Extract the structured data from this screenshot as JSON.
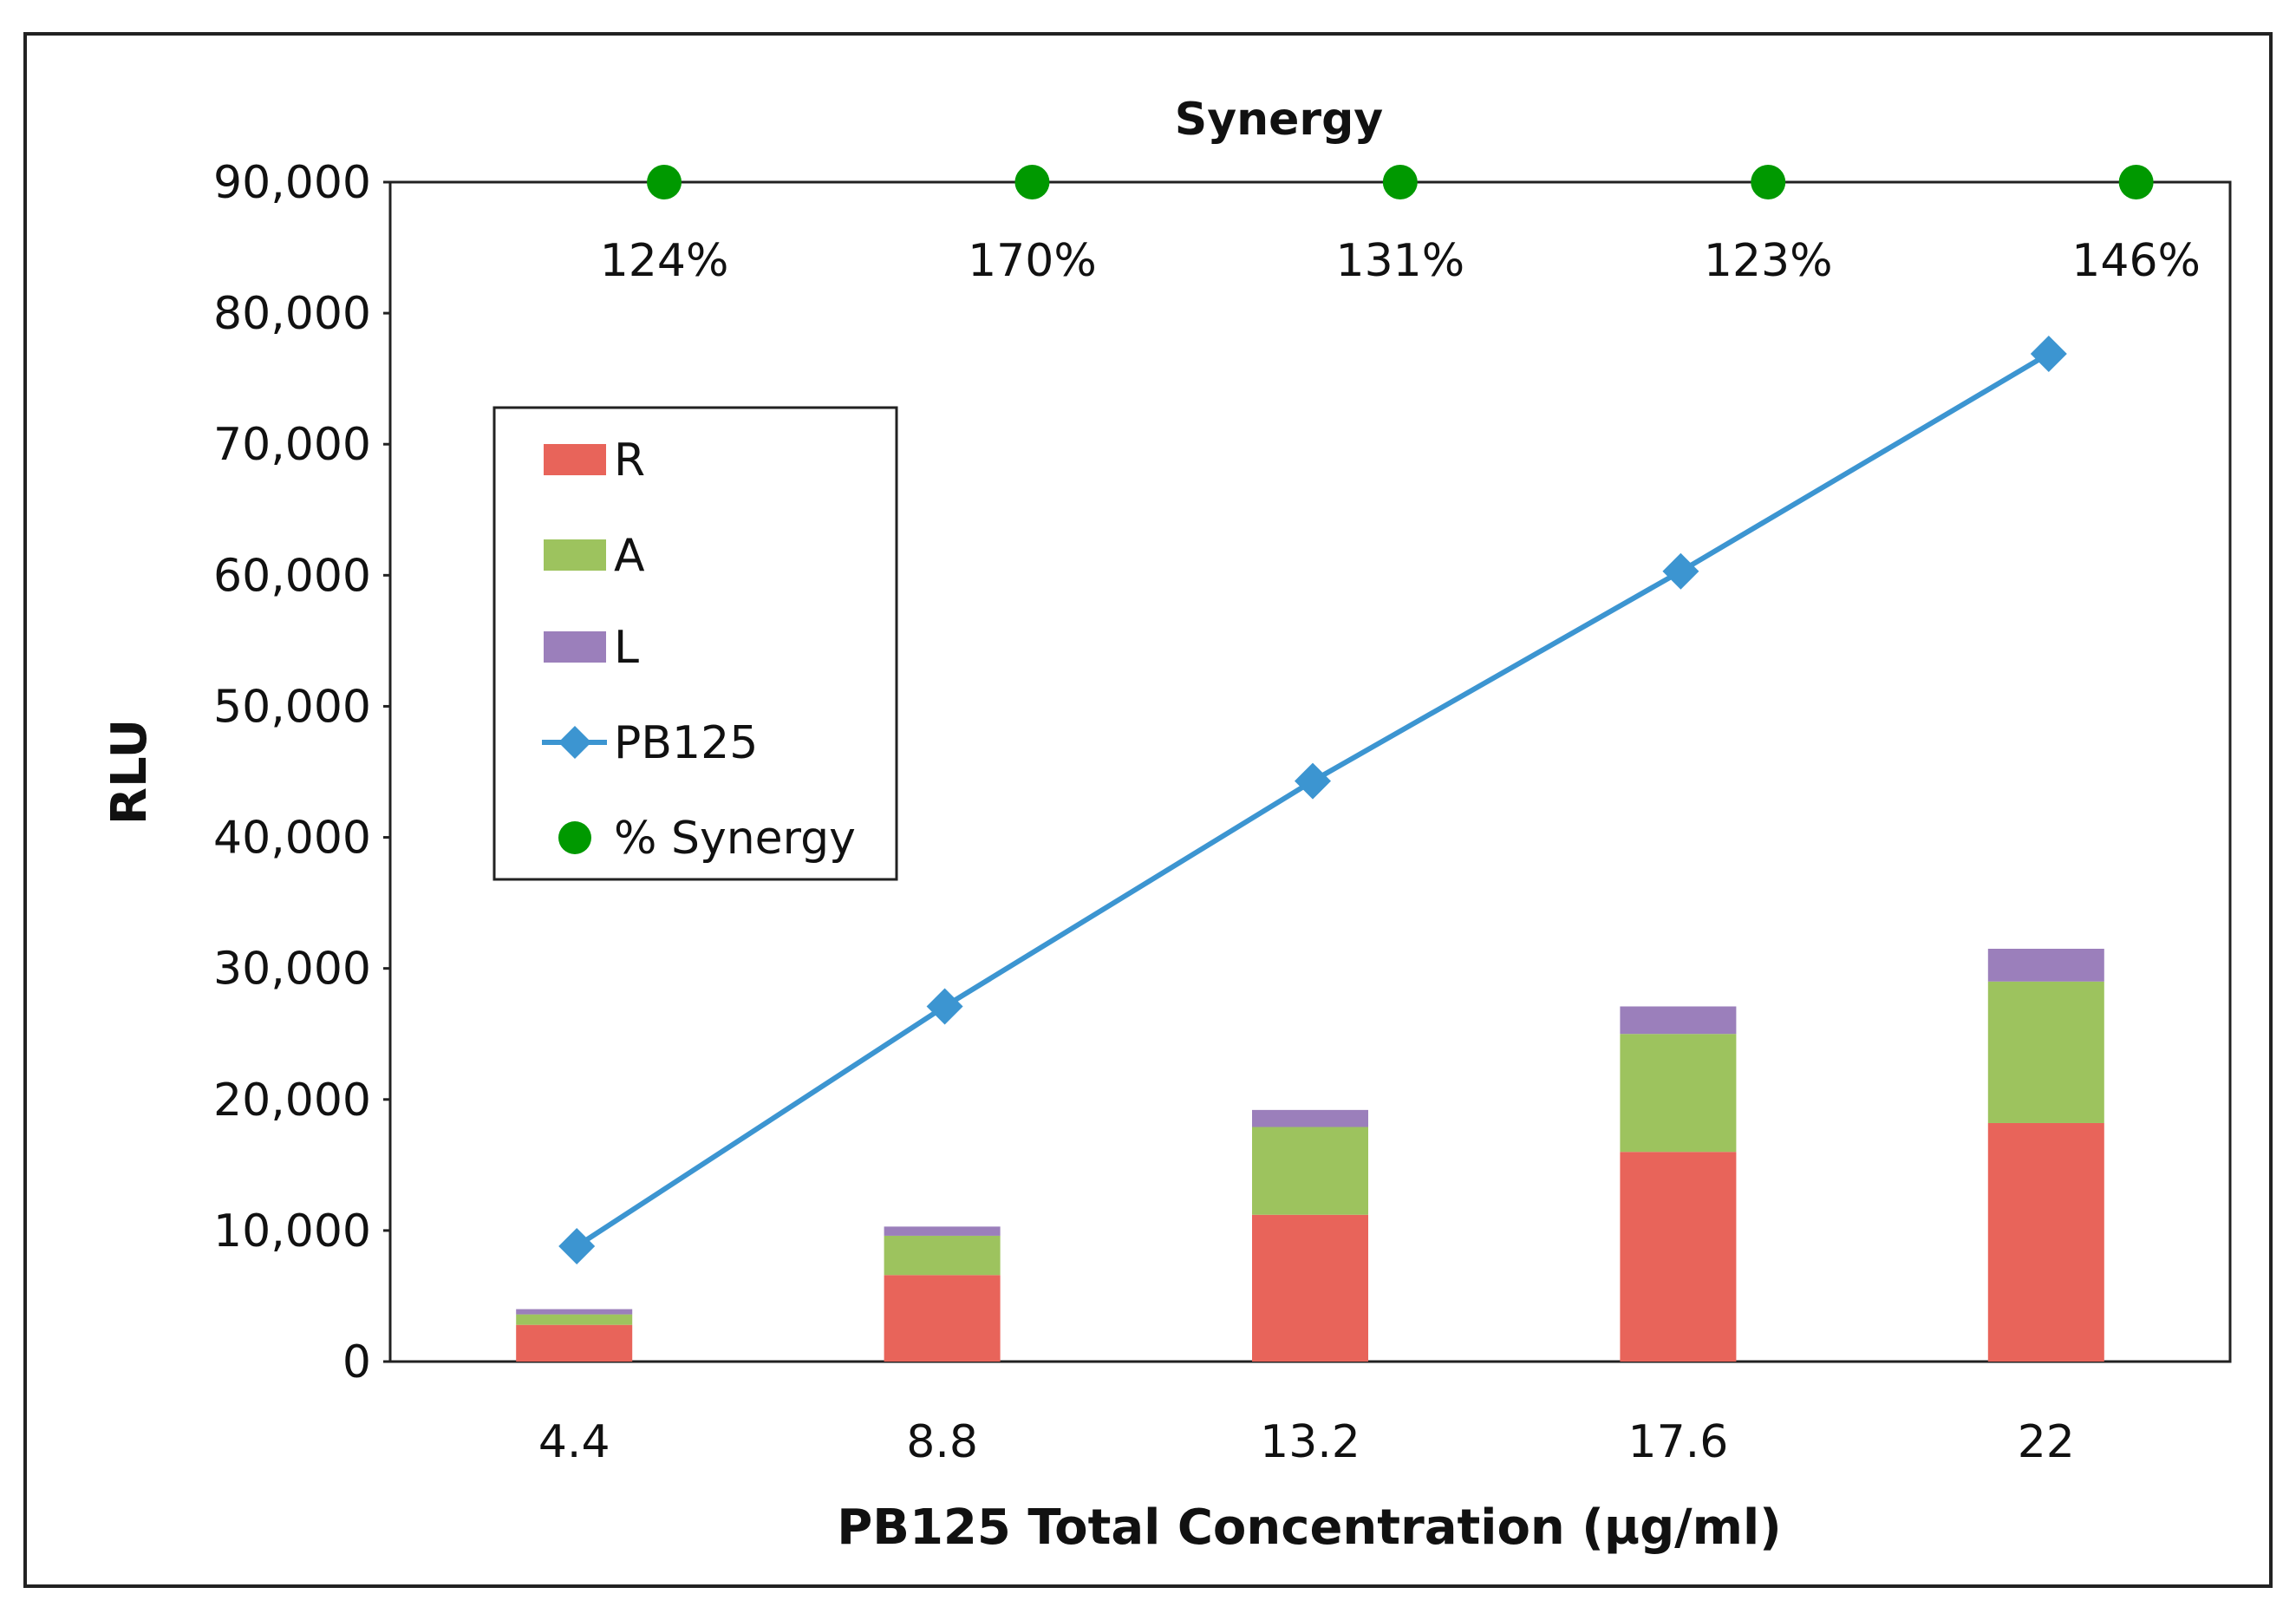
{
  "chart_data": {
    "type": "bar",
    "title": "Synergy",
    "xlabel": "PB125 Total Concentration (µg/ml)",
    "ylabel": "RLU",
    "categories": [
      "4.4",
      "8.8",
      "13.2",
      "17.6",
      "22"
    ],
    "ylim": [
      0,
      90000
    ],
    "yticks": [
      0,
      10000,
      20000,
      30000,
      40000,
      50000,
      60000,
      70000,
      80000,
      90000
    ],
    "ytick_labels": [
      "0",
      "10,000",
      "20,000",
      "30,000",
      "40,000",
      "50,000",
      "60,000",
      "70,000",
      "80,000",
      "90,000"
    ],
    "grid": false,
    "legend_position": "upper-left",
    "series": [
      {
        "name": "R",
        "kind": "stacked-bar",
        "color": "#e8645a",
        "values": [
          2800,
          6600,
          11200,
          16000,
          18200
        ]
      },
      {
        "name": "A",
        "kind": "stacked-bar",
        "color": "#9dc35e",
        "values": [
          800,
          3000,
          6700,
          9000,
          10800
        ]
      },
      {
        "name": "L",
        "kind": "stacked-bar",
        "color": "#9b7fbb",
        "values": [
          400,
          700,
          1300,
          2100,
          2500
        ]
      },
      {
        "name": "PB125",
        "kind": "line",
        "marker": "diamond",
        "color": "#3c95d1",
        "values": [
          8800,
          27100,
          44300,
          60300,
          76900
        ]
      },
      {
        "name": "% Synergy",
        "kind": "scatter",
        "marker": "circle",
        "color": "#009900",
        "values": [
          90000,
          90000,
          90000,
          90000,
          90000
        ]
      }
    ],
    "annotations": [
      "124%",
      "170%",
      "131%",
      "123%",
      "146%"
    ]
  }
}
